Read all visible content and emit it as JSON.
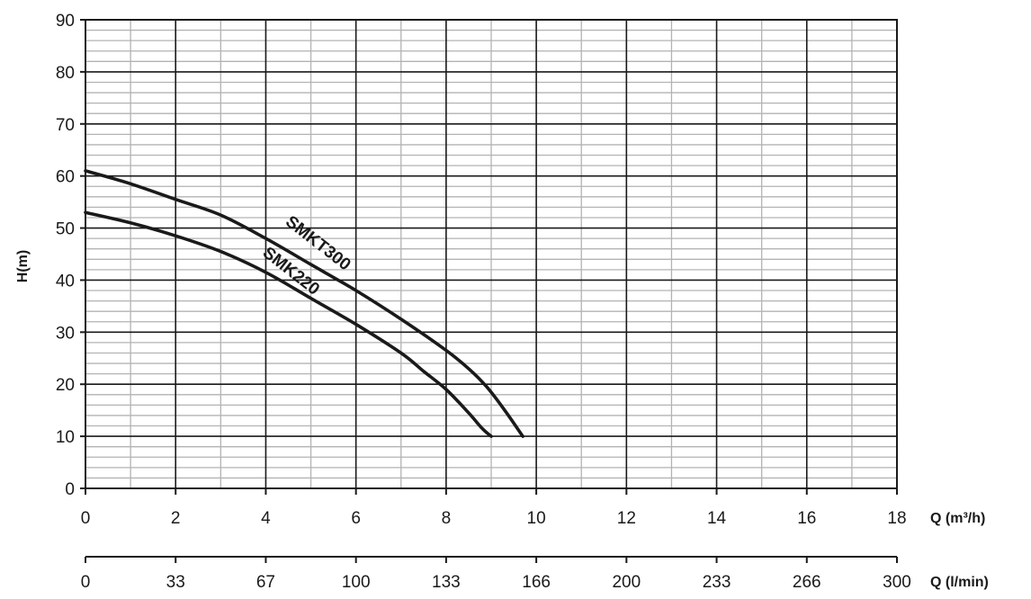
{
  "chart_data": {
    "type": "line",
    "title": "",
    "xlabel": "Q (m³/h)",
    "x2label": "Q (l/min)",
    "ylabel": "H(m)",
    "xlim": [
      0,
      18
    ],
    "ylim": [
      0,
      90
    ],
    "grid": true,
    "legend": "none",
    "x_ticks": [
      0,
      2,
      4,
      6,
      8,
      10,
      12,
      14,
      16,
      18
    ],
    "x2_ticks": [
      0,
      33,
      67,
      100,
      133,
      166,
      200,
      233,
      266,
      300
    ],
    "y_ticks": [
      0,
      10,
      20,
      30,
      40,
      50,
      60,
      70,
      80,
      90
    ],
    "series": [
      {
        "name": "SMKT300",
        "x": [
          0,
          1,
          2,
          3,
          4,
          5,
          6,
          7,
          8,
          8.5,
          8.9,
          9.3,
          9.7
        ],
        "y": [
          61,
          58.5,
          55.5,
          52.5,
          48,
          43,
          38,
          32.5,
          26.5,
          23,
          19.5,
          15,
          10
        ]
      },
      {
        "name": "SMK220",
        "x": [
          0,
          1,
          2,
          3,
          4,
          5,
          6,
          7,
          7.5,
          8,
          8.5,
          8.8,
          9.0
        ],
        "y": [
          53,
          51,
          48.5,
          45.5,
          41.5,
          36.5,
          31.5,
          26,
          22.5,
          19,
          14.5,
          11.5,
          10
        ]
      }
    ],
    "colors": {
      "line": "#1a1a1a",
      "major_grid": "#1a1a1a",
      "minor_grid": "#b3b3b3"
    }
  }
}
